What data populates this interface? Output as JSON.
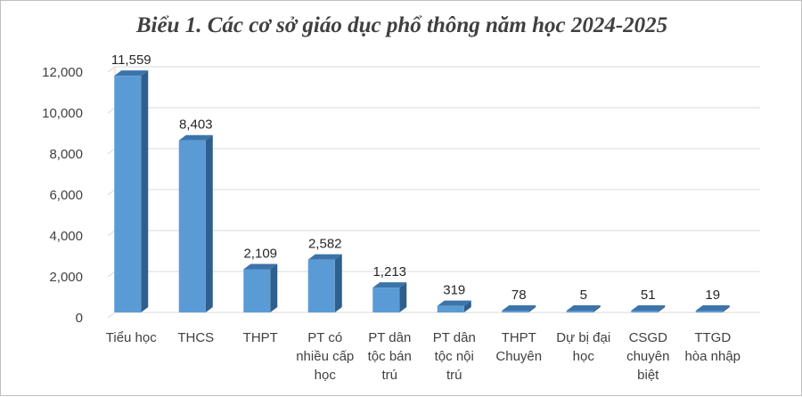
{
  "chart_data": {
    "type": "bar",
    "title": "Biểu 1. Các cơ sở giáo dục phổ thông năm học 2024-2025",
    "xlabel": "",
    "ylabel": "",
    "categories": [
      "Tiểu học",
      "THCS",
      "THPT",
      "PT có nhiều cấp học",
      "PT dân tộc bán trú",
      "PT dân tộc nội trú",
      "THPT Chuyên",
      "Dự bị đại học",
      "CSGD chuyên biệt",
      "TTGD hòa nhập"
    ],
    "category_lines": [
      [
        "Tiểu học"
      ],
      [
        "THCS"
      ],
      [
        "THPT"
      ],
      [
        "PT có",
        "nhiều cấp",
        "học"
      ],
      [
        "PT dân",
        "tộc bán",
        "trú"
      ],
      [
        "PT dân",
        "tộc nội",
        "trú"
      ],
      [
        "THPT",
        "Chuyên"
      ],
      [
        "Dự bị đại",
        "học"
      ],
      [
        "CSGD",
        "chuyên",
        "biệt"
      ],
      [
        "TTGD",
        "hòa nhập"
      ]
    ],
    "values": [
      11559,
      8403,
      2109,
      2582,
      1213,
      319,
      78,
      5,
      51,
      19
    ],
    "value_labels": [
      "11,559",
      "8,403",
      "2,109",
      "2,582",
      "1,213",
      "319",
      "78",
      "5",
      "51",
      "19"
    ],
    "ylim": [
      0,
      12000
    ],
    "yticks": [
      0,
      2000,
      4000,
      6000,
      8000,
      10000,
      12000
    ],
    "ytick_labels": [
      "0",
      "2,000",
      "4,000",
      "6,000",
      "8,000",
      "10,000",
      "12,000"
    ],
    "grid": true,
    "bar_style": "3d",
    "colors": {
      "bar_front": "#5b9bd5",
      "bar_side": "#2e5f8e",
      "bar_top": "#3c74aa",
      "grid": "#d9d9d9",
      "text": "#404040"
    }
  }
}
